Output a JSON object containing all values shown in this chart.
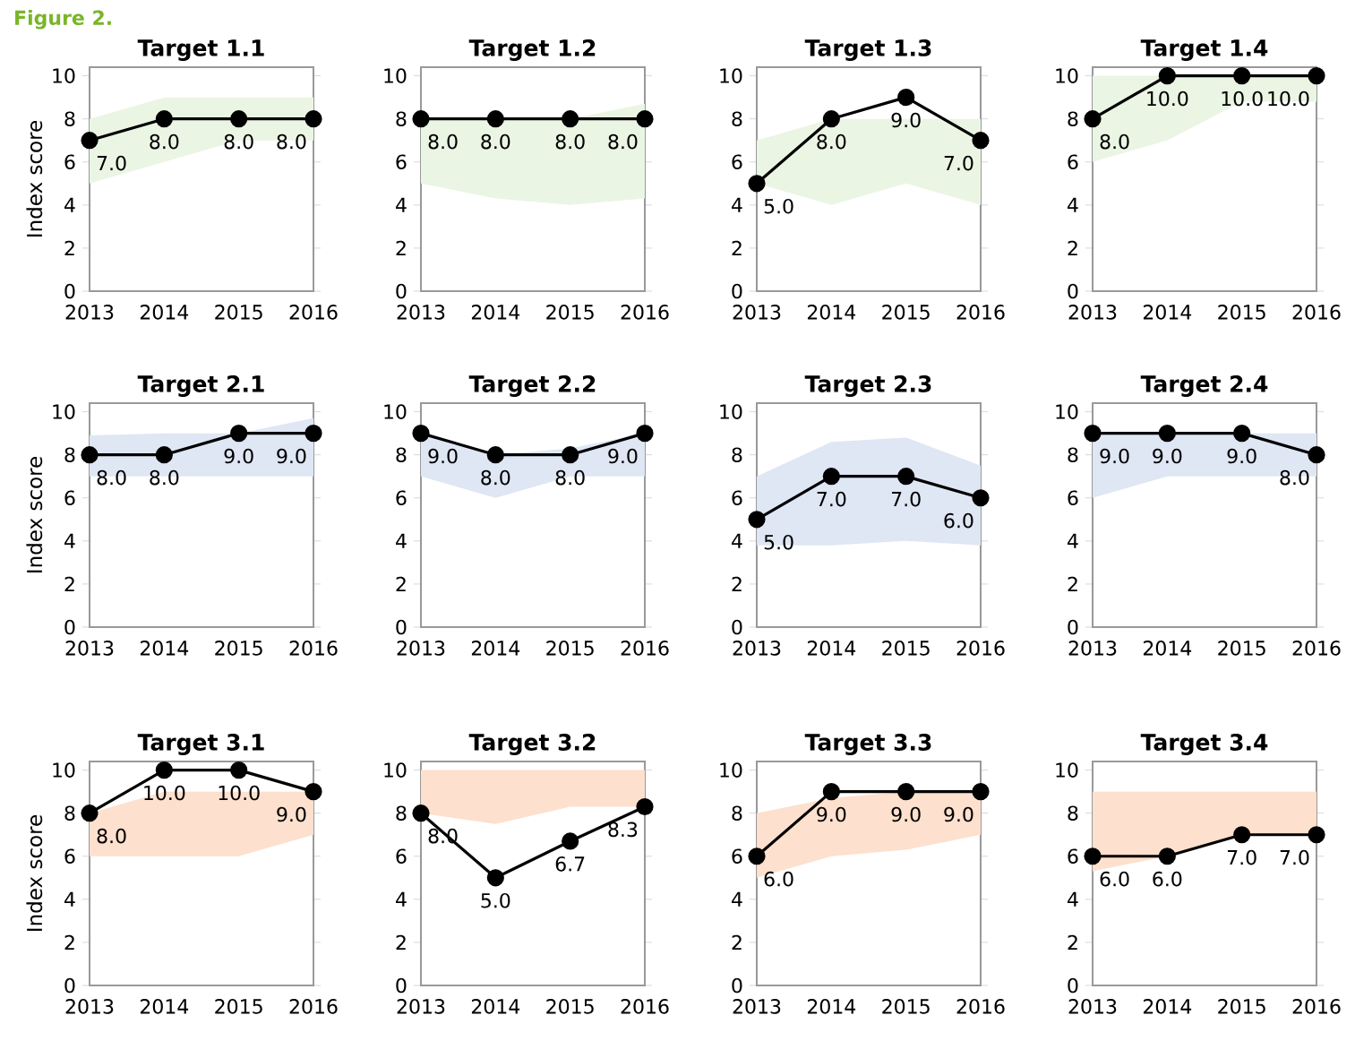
{
  "chart_data": [
    {
      "type": "line",
      "title": "Target 1.1",
      "ylabel": "Index score",
      "annotations": [
        "Figure 2."
      ],
      "categories": [
        "2013",
        "2014",
        "2015",
        "2016"
      ],
      "ylim": [
        0,
        10.4
      ],
      "yticks": [
        0,
        2,
        4,
        6,
        8,
        10
      ],
      "marker": "circle",
      "line_style": "solid",
      "grid": false,
      "series": [
        {
          "color": "#000000",
          "values": [
            7,
            8,
            8,
            8
          ],
          "value_labels": [
            "7.0",
            "8.0",
            "8.0",
            "8.0"
          ],
          "lower": [
            5,
            6,
            7,
            7
          ],
          "upper": [
            8,
            9,
            9,
            9
          ]
        }
      ]
    },
    {
      "type": "line",
      "title": "Target 1.2",
      "categories": [
        "2013",
        "2014",
        "2015",
        "2016"
      ],
      "ylim": [
        0,
        10.4
      ],
      "yticks": [
        0,
        2,
        4,
        6,
        8,
        10
      ],
      "marker": "circle",
      "line_style": "solid",
      "grid": false,
      "series": [
        {
          "color": "#000000",
          "values": [
            8,
            8,
            8,
            8
          ],
          "value_labels": [
            "8.0",
            "8.0",
            "8.0",
            "8.0"
          ],
          "lower": [
            5,
            4.3,
            4,
            4.3
          ],
          "upper": [
            8,
            8,
            8,
            8.7
          ]
        }
      ]
    },
    {
      "type": "line",
      "title": "Target 1.3",
      "categories": [
        "2013",
        "2014",
        "2015",
        "2016"
      ],
      "ylim": [
        0,
        10.4
      ],
      "yticks": [
        0,
        2,
        4,
        6,
        8,
        10
      ],
      "marker": "circle",
      "line_style": "solid",
      "grid": false,
      "series": [
        {
          "color": "#000000",
          "values": [
            5,
            8,
            9,
            7
          ],
          "value_labels": [
            "5.0",
            "8.0",
            "9.0",
            "7.0"
          ],
          "lower": [
            5,
            4,
            5,
            4
          ],
          "upper": [
            7,
            8,
            8,
            8
          ]
        }
      ]
    },
    {
      "type": "line",
      "title": "Target 1.4",
      "categories": [
        "2013",
        "2014",
        "2015",
        "2016"
      ],
      "ylim": [
        0,
        10.4
      ],
      "yticks": [
        0,
        2,
        4,
        6,
        8,
        10
      ],
      "marker": "circle",
      "line_style": "solid",
      "grid": false,
      "series": [
        {
          "color": "#000000",
          "values": [
            8,
            10,
            10,
            10
          ],
          "value_labels": [
            "8.0",
            "10.0",
            "10.0",
            "10.0"
          ],
          "lower": [
            6,
            7,
            8.8,
            8.8
          ],
          "upper": [
            10,
            10,
            10,
            10
          ]
        }
      ]
    },
    {
      "type": "line",
      "title": "Target 2.1",
      "ylabel": "Index score",
      "categories": [
        "2013",
        "2014",
        "2015",
        "2016"
      ],
      "ylim": [
        0,
        10.4
      ],
      "yticks": [
        0,
        2,
        4,
        6,
        8,
        10
      ],
      "marker": "circle",
      "line_style": "solid",
      "grid": false,
      "series": [
        {
          "color": "#000000",
          "values": [
            8,
            8,
            9,
            9
          ],
          "value_labels": [
            "8.0",
            "8.0",
            "9.0",
            "9.0"
          ],
          "lower": [
            7,
            7,
            7,
            7
          ],
          "upper": [
            8.9,
            9,
            9,
            9.7
          ]
        }
      ]
    },
    {
      "type": "line",
      "title": "Target 2.2",
      "categories": [
        "2013",
        "2014",
        "2015",
        "2016"
      ],
      "ylim": [
        0,
        10.4
      ],
      "yticks": [
        0,
        2,
        4,
        6,
        8,
        10
      ],
      "marker": "circle",
      "line_style": "solid",
      "grid": false,
      "series": [
        {
          "color": "#000000",
          "values": [
            9,
            8,
            8,
            9
          ],
          "value_labels": [
            "9.0",
            "8.0",
            "8.0",
            "9.0"
          ],
          "lower": [
            7,
            6,
            7,
            7
          ],
          "upper": [
            9,
            8,
            8.3,
            9
          ]
        }
      ]
    },
    {
      "type": "line",
      "title": "Target 2.3",
      "categories": [
        "2013",
        "2014",
        "2015",
        "2016"
      ],
      "ylim": [
        0,
        10.4
      ],
      "yticks": [
        0,
        2,
        4,
        6,
        8,
        10
      ],
      "marker": "circle",
      "line_style": "solid",
      "grid": false,
      "series": [
        {
          "color": "#000000",
          "values": [
            5,
            7,
            7,
            6
          ],
          "value_labels": [
            "5.0",
            "7.0",
            "7.0",
            "6.0"
          ],
          "lower": [
            3.8,
            3.8,
            4,
            3.8
          ],
          "upper": [
            7,
            8.6,
            8.8,
            7.5
          ]
        }
      ]
    },
    {
      "type": "line",
      "title": "Target 2.4",
      "categories": [
        "2013",
        "2014",
        "2015",
        "2016"
      ],
      "ylim": [
        0,
        10.4
      ],
      "yticks": [
        0,
        2,
        4,
        6,
        8,
        10
      ],
      "marker": "circle",
      "line_style": "solid",
      "grid": false,
      "series": [
        {
          "color": "#000000",
          "values": [
            9,
            9,
            9,
            8
          ],
          "value_labels": [
            "9.0",
            "9.0",
            "9.0",
            "8.0"
          ],
          "lower": [
            6,
            7,
            7,
            7
          ],
          "upper": [
            9,
            9,
            9,
            9
          ]
        }
      ]
    },
    {
      "type": "line",
      "title": "Target 3.1",
      "ylabel": "Index score",
      "categories": [
        "2013",
        "2014",
        "2015",
        "2016"
      ],
      "ylim": [
        0,
        10.4
      ],
      "yticks": [
        0,
        2,
        4,
        6,
        8,
        10
      ],
      "marker": "circle",
      "line_style": "solid",
      "grid": false,
      "series": [
        {
          "color": "#000000",
          "values": [
            8,
            10,
            10,
            9
          ],
          "value_labels": [
            "8.0",
            "10.0",
            "10.0",
            "9.0"
          ],
          "lower": [
            6,
            6,
            6,
            7
          ],
          "upper": [
            8,
            9,
            9,
            9
          ]
        }
      ]
    },
    {
      "type": "line",
      "title": "Target 3.2",
      "categories": [
        "2013",
        "2014",
        "2015",
        "2016"
      ],
      "ylim": [
        0,
        10.4
      ],
      "yticks": [
        0,
        2,
        4,
        6,
        8,
        10
      ],
      "marker": "circle",
      "line_style": "solid",
      "grid": false,
      "series": [
        {
          "color": "#000000",
          "values": [
            8,
            5,
            6.7,
            8.3
          ],
          "value_labels": [
            "8.0",
            "5.0",
            "6.7",
            "8.3"
          ],
          "lower": [
            8,
            7.5,
            8.3,
            8.3
          ],
          "upper": [
            10,
            10,
            10,
            10
          ]
        }
      ]
    },
    {
      "type": "line",
      "title": "Target 3.3",
      "categories": [
        "2013",
        "2014",
        "2015",
        "2016"
      ],
      "ylim": [
        0,
        10.4
      ],
      "yticks": [
        0,
        2,
        4,
        6,
        8,
        10
      ],
      "marker": "circle",
      "line_style": "solid",
      "grid": false,
      "series": [
        {
          "color": "#000000",
          "values": [
            6,
            9,
            9,
            9
          ],
          "value_labels": [
            "6.0",
            "9.0",
            "9.0",
            "9.0"
          ],
          "lower": [
            5,
            6,
            6.3,
            7
          ],
          "upper": [
            8,
            8.7,
            9,
            9
          ]
        }
      ]
    },
    {
      "type": "line",
      "title": "Target 3.4",
      "categories": [
        "2013",
        "2014",
        "2015",
        "2016"
      ],
      "ylim": [
        0,
        10.4
      ],
      "yticks": [
        0,
        2,
        4,
        6,
        8,
        10
      ],
      "marker": "circle",
      "line_style": "solid",
      "grid": false,
      "series": [
        {
          "color": "#000000",
          "values": [
            6,
            6,
            7,
            7
          ],
          "value_labels": [
            "6.0",
            "6.0",
            "7.0",
            "7.0"
          ],
          "lower": [
            5.3,
            6,
            7,
            7
          ],
          "upper": [
            9,
            9,
            9,
            9
          ]
        }
      ]
    }
  ]
}
